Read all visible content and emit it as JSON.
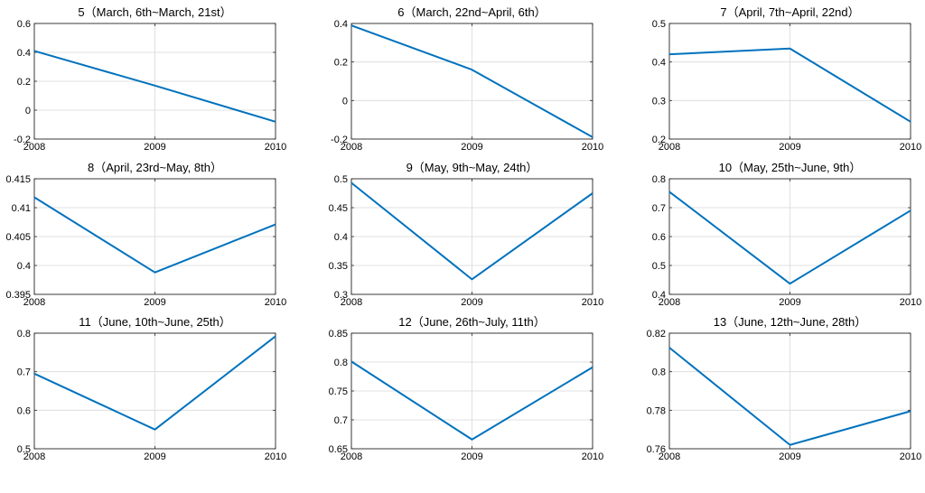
{
  "figure": {
    "line_color": "#0072BD",
    "grid_color": "#d9d9d9",
    "axis_color": "#262626"
  },
  "chart_data": [
    {
      "type": "line",
      "title": "5（March, 6th~March, 21st）",
      "x": [
        2008,
        2009,
        2010
      ],
      "xticks": [
        "2008",
        "2009",
        "2010"
      ],
      "values": [
        0.41,
        0.17,
        -0.08
      ],
      "ylim": [
        -0.2,
        0.6
      ],
      "yticks": [
        -0.2,
        0,
        0.2,
        0.4,
        0.6
      ],
      "ytick_labels": [
        "-0.2",
        "0",
        "0.2",
        "0.4",
        "0.6"
      ]
    },
    {
      "type": "line",
      "title": "6（March, 22nd~April, 6th）",
      "x": [
        2008,
        2009,
        2010
      ],
      "xticks": [
        "2008",
        "2009",
        "2010"
      ],
      "values": [
        0.39,
        0.16,
        -0.19
      ],
      "ylim": [
        -0.2,
        0.4
      ],
      "yticks": [
        -0.2,
        0,
        0.2,
        0.4
      ],
      "ytick_labels": [
        "-0.2",
        "0",
        "0.2",
        "0.4"
      ]
    },
    {
      "type": "line",
      "title": "7（April, 7th~April, 22nd）",
      "x": [
        2008,
        2009,
        2010
      ],
      "xticks": [
        "2008",
        "2009",
        "2010"
      ],
      "values": [
        0.42,
        0.435,
        0.245
      ],
      "ylim": [
        0.2,
        0.5
      ],
      "yticks": [
        0.2,
        0.3,
        0.4,
        0.5
      ],
      "ytick_labels": [
        "0.2",
        "0.3",
        "0.4",
        "0.5"
      ]
    },
    {
      "type": "line",
      "title": "8（April, 23rd~May, 8th）",
      "x": [
        2008,
        2009,
        2010
      ],
      "xticks": [
        "2008",
        "2009",
        "2010"
      ],
      "values": [
        0.4118,
        0.3988,
        0.4071
      ],
      "ylim": [
        0.395,
        0.415
      ],
      "yticks": [
        0.395,
        0.4,
        0.405,
        0.41,
        0.415
      ],
      "ytick_labels": [
        "0.395",
        "0.4",
        "0.405",
        "0.41",
        "0.415"
      ]
    },
    {
      "type": "line",
      "title": "9（May, 9th~May, 24th）",
      "x": [
        2008,
        2009,
        2010
      ],
      "xticks": [
        "2008",
        "2009",
        "2010"
      ],
      "values": [
        0.493,
        0.326,
        0.475
      ],
      "ylim": [
        0.3,
        0.5
      ],
      "yticks": [
        0.3,
        0.35,
        0.4,
        0.45,
        0.5
      ],
      "ytick_labels": [
        "0.3",
        "0.35",
        "0.4",
        "0.45",
        "0.5"
      ]
    },
    {
      "type": "line",
      "title": "10（May, 25th~June, 9th）",
      "x": [
        2008,
        2009,
        2010
      ],
      "xticks": [
        "2008",
        "2009",
        "2010"
      ],
      "values": [
        0.755,
        0.437,
        0.69
      ],
      "ylim": [
        0.4,
        0.8
      ],
      "yticks": [
        0.4,
        0.5,
        0.6,
        0.7,
        0.8
      ],
      "ytick_labels": [
        "0.4",
        "0.5",
        "0.6",
        "0.7",
        "0.8"
      ]
    },
    {
      "type": "line",
      "title": "11（June, 10th~June, 25th）",
      "x": [
        2008,
        2009,
        2010
      ],
      "xticks": [
        "2008",
        "2009",
        "2010"
      ],
      "values": [
        0.695,
        0.55,
        0.792
      ],
      "ylim": [
        0.5,
        0.8
      ],
      "yticks": [
        0.5,
        0.6,
        0.7,
        0.8
      ],
      "ytick_labels": [
        "0.5",
        "0.6",
        "0.7",
        "0.8"
      ]
    },
    {
      "type": "line",
      "title": "12（June, 26th~July, 11th）",
      "x": [
        2008,
        2009,
        2010
      ],
      "xticks": [
        "2008",
        "2009",
        "2010"
      ],
      "values": [
        0.801,
        0.666,
        0.791
      ],
      "ylim": [
        0.65,
        0.85
      ],
      "yticks": [
        0.65,
        0.7,
        0.75,
        0.8,
        0.85
      ],
      "ytick_labels": [
        "0.65",
        "0.7",
        "0.75",
        "0.8",
        "0.85"
      ]
    },
    {
      "type": "line",
      "title": "13（June, 12th~June, 28th）",
      "x": [
        2008,
        2009,
        2010
      ],
      "xticks": [
        "2008",
        "2009",
        "2010"
      ],
      "values": [
        0.8125,
        0.762,
        0.7795
      ],
      "ylim": [
        0.76,
        0.82
      ],
      "yticks": [
        0.76,
        0.78,
        0.8,
        0.82
      ],
      "ytick_labels": [
        "0.76",
        "0.78",
        "0.8",
        "0.82"
      ]
    }
  ]
}
